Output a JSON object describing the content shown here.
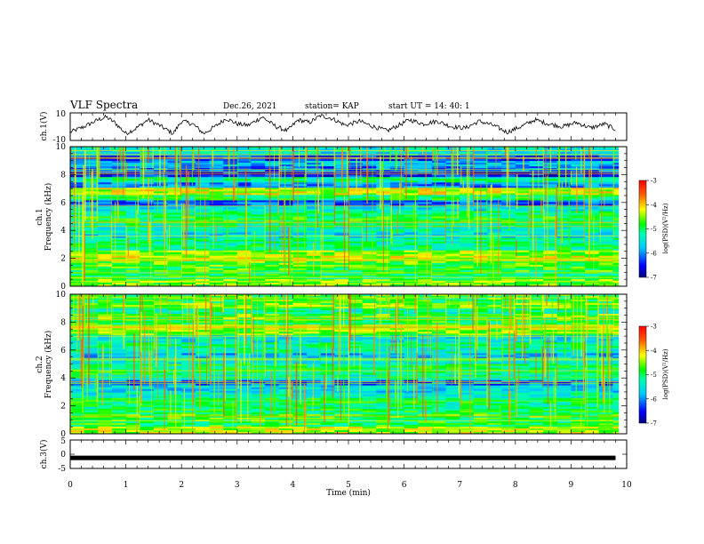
{
  "header": {
    "title": "VLF Spectra",
    "date": "Dec.26, 2021",
    "station": "station= KAP",
    "start": "start  UT  =   14: 40: 1"
  },
  "chart_data": [
    {
      "type": "line",
      "id": "ch1-waveform",
      "ylabel": "ch.1(V)",
      "ylim": [
        -10,
        10
      ],
      "yticks": [
        "10",
        "-10"
      ],
      "xlim": [
        0,
        10
      ],
      "x": [
        0,
        0.25,
        0.5,
        0.65,
        0.8,
        1.0,
        1.15,
        1.4,
        1.6,
        1.85,
        2.0,
        2.2,
        2.4,
        2.6,
        2.8,
        3.0,
        3.2,
        3.45,
        3.7,
        3.9,
        4.1,
        4.3,
        4.5,
        4.7,
        4.95,
        5.2,
        5.45,
        5.7,
        5.9,
        6.1,
        6.35,
        6.6,
        6.85,
        7.1,
        7.35,
        7.6,
        7.85,
        8.1,
        8.35,
        8.6,
        8.85,
        9.1,
        9.35,
        9.6,
        9.8
      ],
      "y": [
        -4,
        0,
        5,
        7,
        3,
        -5,
        -2,
        5,
        1,
        -5,
        4,
        2,
        -5,
        0,
        6,
        2,
        1,
        7,
        0,
        -3,
        5,
        3,
        8,
        6,
        1,
        4,
        0,
        -3,
        1,
        5,
        2,
        4,
        0,
        -1,
        4,
        1,
        -4,
        0,
        5,
        2,
        0,
        3,
        -1,
        2,
        -2
      ]
    },
    {
      "type": "heatmap",
      "id": "ch1-spectrogram",
      "ylabel_line1": "ch.1",
      "ylabel_line2": "Frequency (kHz)",
      "ylim": [
        0,
        10
      ],
      "yticks": [
        "0",
        "2",
        "4",
        "6",
        "8",
        "10"
      ],
      "xlim": [
        0,
        10
      ],
      "freq_band_centers_kHz": [
        0.3,
        0.8,
        1.2,
        1.6,
        2.0,
        2.4,
        2.8,
        3.2,
        3.6,
        4.0,
        4.4,
        4.8,
        5.2,
        5.6,
        6.0,
        6.4,
        6.8,
        7.2,
        7.6,
        8.0,
        8.4,
        8.8,
        9.2,
        9.6
      ],
      "level_by_band": [
        -4.6,
        -5.0,
        -4.8,
        -4.7,
        -4.3,
        -4.5,
        -5.1,
        -5.2,
        -5.6,
        -5.4,
        -5.2,
        -4.9,
        -5.1,
        -5.5,
        -6.2,
        -5.0,
        -4.3,
        -6.0,
        -5.2,
        -6.4,
        -6.1,
        -5.8,
        -6.3,
        -5.5
      ],
      "colorbar": {
        "label": "log(PSD)(V²/Hz)",
        "min": -7,
        "max": -3,
        "ticks": [
          "-3",
          "-4",
          "-5",
          "-6",
          "-7"
        ]
      }
    },
    {
      "type": "heatmap",
      "id": "ch2-spectrogram",
      "ylabel_line1": "ch.2",
      "ylabel_line2": "Frequency (kHz)",
      "ylim": [
        0,
        10
      ],
      "yticks": [
        "0",
        "2",
        "4",
        "6",
        "8",
        "10"
      ],
      "xlim": [
        0,
        10
      ],
      "freq_band_centers_kHz": [
        0.3,
        0.8,
        1.2,
        1.6,
        2.0,
        2.4,
        2.8,
        3.2,
        3.6,
        4.0,
        4.4,
        4.8,
        5.2,
        5.6,
        6.0,
        6.4,
        6.8,
        7.2,
        7.6,
        8.0,
        8.4,
        8.8,
        9.2,
        9.6
      ],
      "level_by_band": [
        -4.4,
        -4.9,
        -4.8,
        -5.0,
        -5.1,
        -5.0,
        -5.4,
        -5.6,
        -6.1,
        -5.3,
        -5.0,
        -5.0,
        -5.4,
        -5.8,
        -5.3,
        -5.2,
        -5.5,
        -4.6,
        -4.4,
        -4.9,
        -4.7,
        -5.2,
        -4.6,
        -4.8
      ],
      "colorbar": {
        "label": "log(PSD)(V²/Hz)",
        "min": -7,
        "max": -3,
        "ticks": [
          "-3",
          "-4",
          "-5",
          "-6",
          "-7"
        ]
      }
    },
    {
      "type": "line",
      "id": "ch3-waveform",
      "ylabel": "ch.3(V)",
      "ylim": [
        -5,
        5
      ],
      "yticks": [
        "5",
        "0",
        "-5"
      ],
      "xlim": [
        0,
        10
      ],
      "x": [
        0,
        9.8
      ],
      "y": [
        -1.3,
        -1.3
      ],
      "xlabel": "Time (min)",
      "xticks": [
        "0",
        "1",
        "2",
        "3",
        "4",
        "5",
        "6",
        "7",
        "8",
        "9",
        "10"
      ]
    }
  ]
}
